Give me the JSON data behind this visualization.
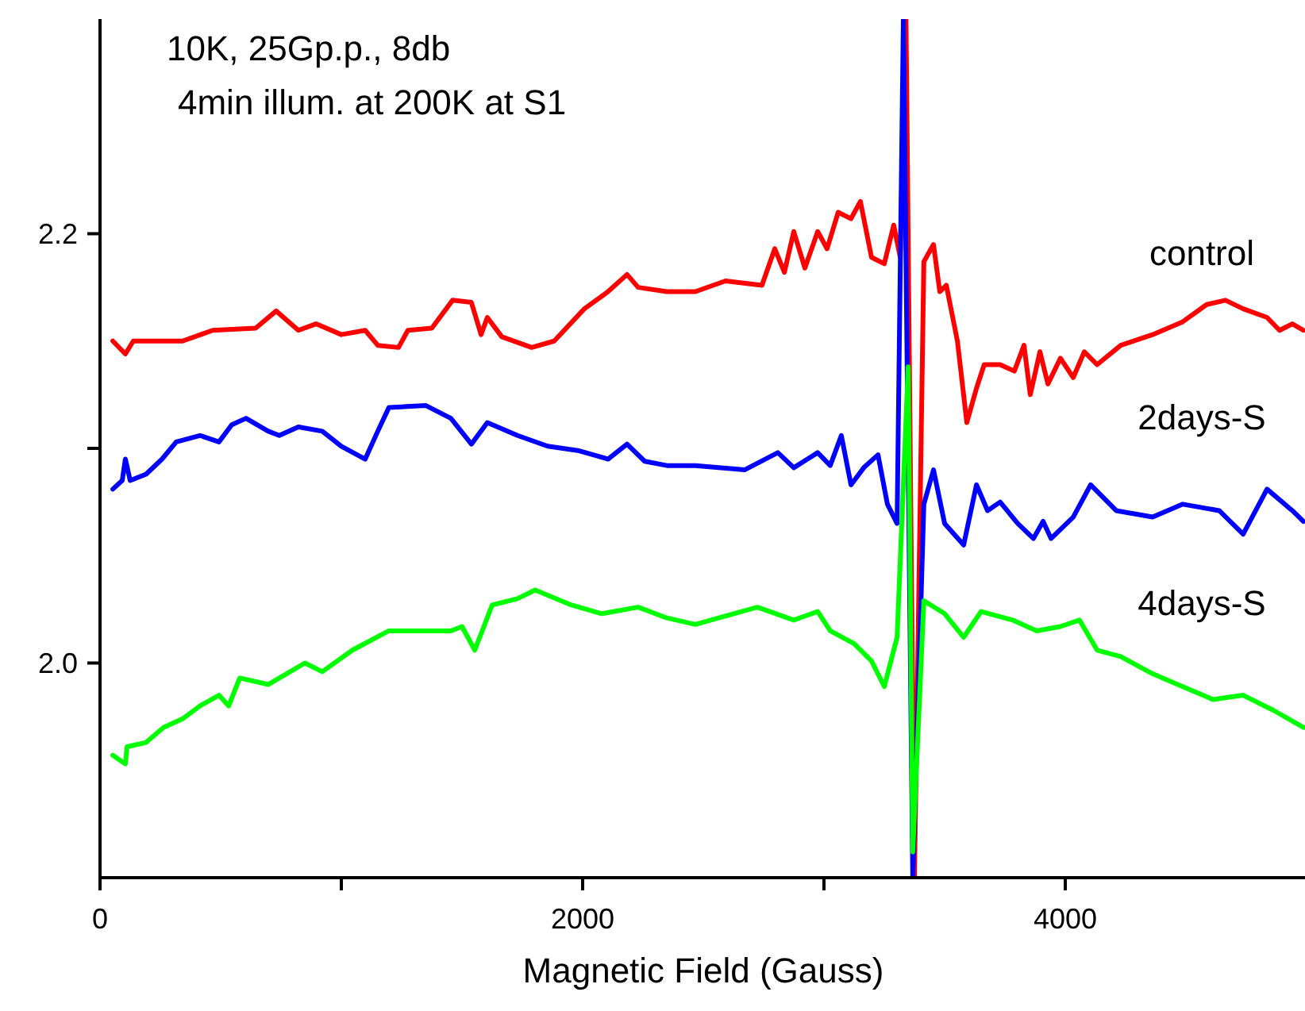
{
  "chart_data": {
    "type": "line",
    "xlabel": "Magnetic Field (Gauss)",
    "annotations": [
      "10K, 25Gp.p., 8db",
      "4min illum. at 200K at S1"
    ],
    "xlim": [
      0,
      5000
    ],
    "ylim": [
      1.9,
      2.3
    ],
    "xticks": [
      0,
      {
        "value": 1000,
        "label": null
      },
      2000,
      {
        "value": 3000,
        "label": null
      },
      4000
    ],
    "yticks": [
      {
        "value": 2.0,
        "label": "2.0"
      },
      {
        "value": 2.1,
        "label": null
      },
      {
        "value": 2.2,
        "label": "2.2"
      }
    ],
    "grid": false,
    "legend": false,
    "marker": "none",
    "line_style": "solid",
    "series": [
      {
        "name": "control",
        "color": "#ff0000",
        "x": [
          53,
          105,
          138,
          342,
          467,
          645,
          730,
          822,
          895,
          1000,
          1099,
          1151,
          1237,
          1276,
          1375,
          1461,
          1539,
          1579,
          1605,
          1665,
          1789,
          1882,
          2007,
          2105,
          2184,
          2230,
          2349,
          2467,
          2592,
          2743,
          2796,
          2836,
          2875,
          2921,
          2974,
          3013,
          3059,
          3112,
          3151,
          3197,
          3250,
          3289,
          3316,
          3340,
          3375,
          3414,
          3454,
          3480,
          3507,
          3553,
          3592,
          3632,
          3664,
          3730,
          3789,
          3829,
          3855,
          3895,
          3928,
          3980,
          4033,
          4079,
          4132,
          4230,
          4362,
          4487,
          4586,
          4664,
          4737,
          4836,
          4888,
          4941,
          4987
        ],
        "values": [
          2.15,
          2.144,
          2.15,
          2.15,
          2.155,
          2.156,
          2.164,
          2.155,
          2.158,
          2.153,
          2.155,
          2.148,
          2.147,
          2.155,
          2.156,
          2.169,
          2.168,
          2.153,
          2.161,
          2.152,
          2.147,
          2.15,
          2.165,
          2.173,
          2.181,
          2.175,
          2.173,
          2.173,
          2.178,
          2.176,
          2.193,
          2.182,
          2.201,
          2.184,
          2.201,
          2.193,
          2.21,
          2.207,
          2.215,
          2.189,
          2.186,
          2.204,
          2.189,
          2.3,
          1.9,
          2.187,
          2.195,
          2.173,
          2.176,
          2.15,
          2.112,
          2.128,
          2.139,
          2.139,
          2.136,
          2.148,
          2.125,
          2.145,
          2.13,
          2.142,
          2.133,
          2.145,
          2.139,
          2.148,
          2.153,
          2.159,
          2.167,
          2.169,
          2.165,
          2.161,
          2.155,
          2.158,
          2.155
        ]
      },
      {
        "name": "2days-S",
        "color": "#0000ff",
        "x": [
          53,
          92,
          105,
          125,
          191,
          257,
          316,
          414,
          493,
          546,
          605,
          697,
          743,
          822,
          921,
          1000,
          1099,
          1151,
          1197,
          1349,
          1454,
          1539,
          1605,
          1730,
          1855,
          1980,
          2105,
          2184,
          2257,
          2349,
          2467,
          2671,
          2809,
          2875,
          2974,
          3026,
          3072,
          3112,
          3165,
          3224,
          3263,
          3303,
          3329,
          3368,
          3414,
          3454,
          3500,
          3579,
          3632,
          3678,
          3730,
          3803,
          3868,
          3908,
          3941,
          4033,
          4105,
          4211,
          4362,
          4487,
          4638,
          4737,
          4836,
          4941,
          4987
        ],
        "values": [
          2.081,
          2.085,
          2.095,
          2.085,
          2.088,
          2.095,
          2.103,
          2.106,
          2.103,
          2.111,
          2.114,
          2.108,
          2.106,
          2.11,
          2.108,
          2.101,
          2.095,
          2.108,
          2.119,
          2.12,
          2.114,
          2.102,
          2.112,
          2.106,
          2.101,
          2.099,
          2.095,
          2.102,
          2.094,
          2.092,
          2.092,
          2.09,
          2.098,
          2.091,
          2.098,
          2.092,
          2.106,
          2.083,
          2.091,
          2.097,
          2.074,
          2.065,
          2.3,
          1.9,
          2.074,
          2.09,
          2.065,
          2.055,
          2.083,
          2.071,
          2.075,
          2.065,
          2.058,
          2.066,
          2.058,
          2.068,
          2.083,
          2.071,
          2.068,
          2.074,
          2.071,
          2.06,
          2.081,
          2.071,
          2.066
        ]
      },
      {
        "name": "4days-S",
        "color": "#00ff00",
        "x": [
          53,
          105,
          112,
          191,
          263,
          342,
          414,
          493,
          533,
          579,
          697,
          849,
          921,
          1046,
          1197,
          1349,
          1454,
          1500,
          1553,
          1625,
          1730,
          1803,
          1954,
          2079,
          2230,
          2349,
          2467,
          2724,
          2875,
          2974,
          3026,
          3125,
          3197,
          3250,
          3303,
          3349,
          3368,
          3414,
          3500,
          3579,
          3651,
          3783,
          3882,
          3980,
          4059,
          4132,
          4230,
          4362,
          4487,
          4612,
          4737,
          4862,
          4987
        ],
        "values": [
          1.957,
          1.953,
          1.961,
          1.963,
          1.97,
          1.974,
          1.98,
          1.985,
          1.98,
          1.993,
          1.99,
          2.0,
          1.996,
          2.006,
          2.015,
          2.015,
          2.015,
          2.017,
          2.006,
          2.027,
          2.03,
          2.034,
          2.027,
          2.023,
          2.026,
          2.021,
          2.018,
          2.026,
          2.02,
          2.024,
          2.015,
          2.009,
          2.001,
          1.989,
          2.012,
          2.138,
          1.912,
          2.029,
          2.023,
          2.012,
          2.024,
          2.02,
          2.015,
          2.017,
          2.02,
          2.006,
          2.003,
          1.995,
          1.989,
          1.983,
          1.985,
          1.978,
          1.97
        ]
      }
    ]
  }
}
